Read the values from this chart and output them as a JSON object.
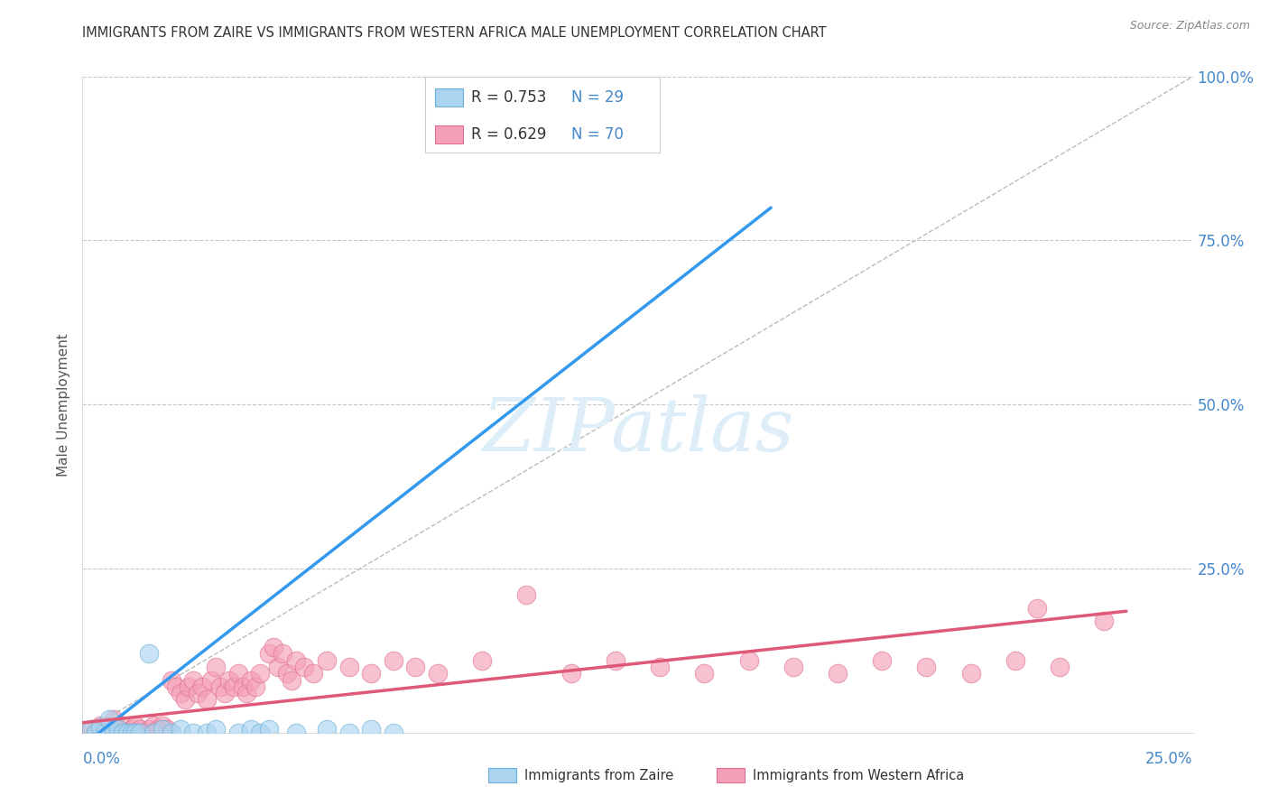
{
  "title": "IMMIGRANTS FROM ZAIRE VS IMMIGRANTS FROM WESTERN AFRICA MALE UNEMPLOYMENT CORRELATION CHART",
  "source": "Source: ZipAtlas.com",
  "ylabel": "Male Unemployment",
  "legend_label_zaire": "Immigrants from Zaire",
  "legend_label_western": "Immigrants from Western Africa",
  "background_color": "#ffffff",
  "plot_bg_color": "#ffffff",
  "grid_color": "#c8c8c8",
  "zaire_scatter_color": "#aad4f0",
  "zaire_edge_color": "#6baed6",
  "western_scatter_color": "#f4a0b8",
  "western_edge_color": "#e07090",
  "zaire_line_color": "#3399ee",
  "western_line_color": "#e05878",
  "ref_line_color": "#bbbbbb",
  "axis_label_color": "#4488cc",
  "watermark_color": "#ddeef8",
  "title_color": "#333333",
  "zaire_points": [
    [
      0.002,
      0.005
    ],
    [
      0.003,
      0.0
    ],
    [
      0.004,
      0.008
    ],
    [
      0.005,
      0.0
    ],
    [
      0.006,
      0.02
    ],
    [
      0.007,
      0.0
    ],
    [
      0.008,
      0.005
    ],
    [
      0.009,
      0.0
    ],
    [
      0.01,
      0.0
    ],
    [
      0.011,
      0.0
    ],
    [
      0.012,
      0.0
    ],
    [
      0.013,
      0.0
    ],
    [
      0.015,
      0.12
    ],
    [
      0.016,
      0.0
    ],
    [
      0.018,
      0.005
    ],
    [
      0.02,
      0.0
    ],
    [
      0.022,
      0.005
    ],
    [
      0.025,
      0.0
    ],
    [
      0.028,
      0.0
    ],
    [
      0.03,
      0.005
    ],
    [
      0.035,
      0.0
    ],
    [
      0.038,
      0.005
    ],
    [
      0.04,
      0.0
    ],
    [
      0.042,
      0.005
    ],
    [
      0.048,
      0.0
    ],
    [
      0.055,
      0.005
    ],
    [
      0.06,
      0.0
    ],
    [
      0.065,
      0.005
    ],
    [
      0.07,
      0.0
    ]
  ],
  "western_points": [
    [
      0.002,
      0.005
    ],
    [
      0.003,
      0.0
    ],
    [
      0.004,
      0.01
    ],
    [
      0.005,
      0.005
    ],
    [
      0.006,
      0.0
    ],
    [
      0.007,
      0.02
    ],
    [
      0.008,
      0.005
    ],
    [
      0.009,
      0.01
    ],
    [
      0.01,
      0.0
    ],
    [
      0.011,
      0.005
    ],
    [
      0.012,
      0.01
    ],
    [
      0.013,
      0.005
    ],
    [
      0.014,
      0.0
    ],
    [
      0.015,
      0.005
    ],
    [
      0.016,
      0.01
    ],
    [
      0.017,
      0.005
    ],
    [
      0.018,
      0.01
    ],
    [
      0.019,
      0.005
    ],
    [
      0.02,
      0.08
    ],
    [
      0.021,
      0.07
    ],
    [
      0.022,
      0.06
    ],
    [
      0.023,
      0.05
    ],
    [
      0.024,
      0.07
    ],
    [
      0.025,
      0.08
    ],
    [
      0.026,
      0.06
    ],
    [
      0.027,
      0.07
    ],
    [
      0.028,
      0.05
    ],
    [
      0.029,
      0.08
    ],
    [
      0.03,
      0.1
    ],
    [
      0.031,
      0.07
    ],
    [
      0.032,
      0.06
    ],
    [
      0.033,
      0.08
    ],
    [
      0.034,
      0.07
    ],
    [
      0.035,
      0.09
    ],
    [
      0.036,
      0.07
    ],
    [
      0.037,
      0.06
    ],
    [
      0.038,
      0.08
    ],
    [
      0.039,
      0.07
    ],
    [
      0.04,
      0.09
    ],
    [
      0.042,
      0.12
    ],
    [
      0.043,
      0.13
    ],
    [
      0.044,
      0.1
    ],
    [
      0.045,
      0.12
    ],
    [
      0.046,
      0.09
    ],
    [
      0.047,
      0.08
    ],
    [
      0.048,
      0.11
    ],
    [
      0.05,
      0.1
    ],
    [
      0.052,
      0.09
    ],
    [
      0.055,
      0.11
    ],
    [
      0.06,
      0.1
    ],
    [
      0.065,
      0.09
    ],
    [
      0.07,
      0.11
    ],
    [
      0.075,
      0.1
    ],
    [
      0.08,
      0.09
    ],
    [
      0.09,
      0.11
    ],
    [
      0.1,
      0.21
    ],
    [
      0.11,
      0.09
    ],
    [
      0.12,
      0.11
    ],
    [
      0.13,
      0.1
    ],
    [
      0.14,
      0.09
    ],
    [
      0.15,
      0.11
    ],
    [
      0.16,
      0.1
    ],
    [
      0.17,
      0.09
    ],
    [
      0.18,
      0.11
    ],
    [
      0.19,
      0.1
    ],
    [
      0.2,
      0.09
    ],
    [
      0.21,
      0.11
    ],
    [
      0.215,
      0.19
    ],
    [
      0.22,
      0.1
    ],
    [
      0.23,
      0.17
    ]
  ],
  "zaire_line": [
    [
      0.0,
      -0.02
    ],
    [
      0.155,
      0.8
    ]
  ],
  "western_line": [
    [
      0.0,
      0.015
    ],
    [
      0.235,
      0.185
    ]
  ],
  "ref_line": [
    [
      0.0,
      0.0
    ],
    [
      0.25,
      1.0
    ]
  ],
  "xlim": [
    0.0,
    0.25
  ],
  "ylim": [
    0.0,
    1.0
  ],
  "yticks": [
    0.0,
    0.25,
    0.5,
    0.75,
    1.0
  ],
  "ytick_labels": [
    "",
    "25.0%",
    "50.0%",
    "75.0%",
    "100.0%"
  ]
}
